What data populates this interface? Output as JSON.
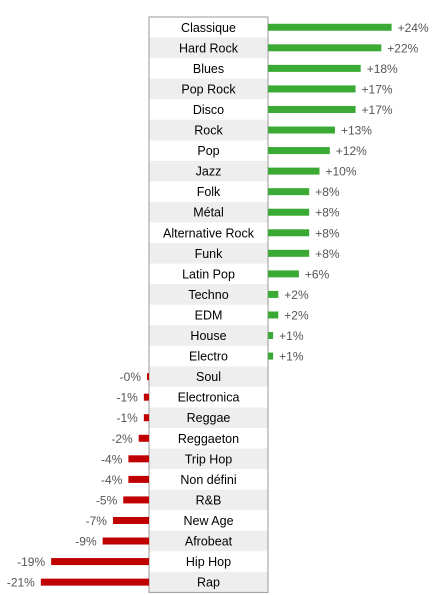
{
  "chart_data": {
    "type": "bar",
    "orientation": "horizontal",
    "categories": [
      "Classique",
      "Hard Rock",
      "Blues",
      "Pop Rock",
      "Disco",
      "Rock",
      "Pop",
      "Jazz",
      "Folk",
      "Métal",
      "Alternative Rock",
      "Funk",
      "Latin Pop",
      "Techno",
      "EDM",
      "House",
      "Electro",
      "Soul",
      "Electronica",
      "Reggae",
      "Reggaeton",
      "Trip Hop",
      "Non défini",
      "R&B",
      "New Age",
      "Afrobeat",
      "Hip Hop",
      "Rap"
    ],
    "values": [
      24,
      22,
      18,
      17,
      17,
      13,
      12,
      10,
      8,
      8,
      8,
      8,
      6,
      2,
      2,
      1,
      1,
      -0.2,
      -1,
      -1,
      -2,
      -4,
      -4,
      -5,
      -7,
      -9,
      -19,
      -21
    ],
    "value_labels": [
      "+24%",
      "+22%",
      "+18%",
      "+17%",
      "+17%",
      "+13%",
      "+12%",
      "+10%",
      "+8%",
      "+8%",
      "+8%",
      "+8%",
      "+6%",
      "+2%",
      "+2%",
      "+1%",
      "+1%",
      "-0%",
      "-1%",
      "-1%",
      "-2%",
      "-4%",
      "-4%",
      "-5%",
      "-7%",
      "-9%",
      "-19%",
      "-21%"
    ],
    "title": "",
    "xlabel": "",
    "ylabel": "",
    "legend": "none",
    "grid": false,
    "colors": {
      "positive": "#3aaa35",
      "negative": "#c00000",
      "label_text": "#000000",
      "value_text": "#555555",
      "row_stripe": "#eeeeee",
      "box_border": "#999999"
    }
  }
}
